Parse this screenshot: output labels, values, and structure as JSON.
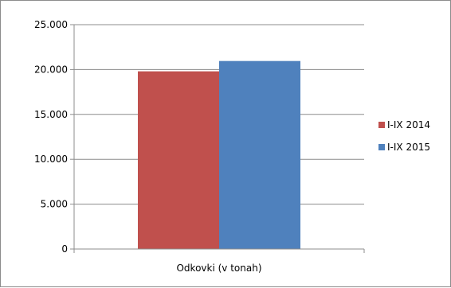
{
  "chart_data": {
    "type": "bar",
    "categories": [
      "Odkovki (v tonah)"
    ],
    "series": [
      {
        "name": "I-IX 2014",
        "values": [
          19800
        ],
        "color": "#c0504d"
      },
      {
        "name": "I-IX 2015",
        "values": [
          20950
        ],
        "color": "#4f81bd"
      }
    ],
    "ylim": [
      0,
      25000
    ],
    "yticks": [
      0,
      5000,
      10000,
      15000,
      20000,
      25000
    ],
    "ytick_labels": [
      "0",
      "5.000",
      "10.000",
      "15.000",
      "20.000",
      "25.000"
    ],
    "grid": true,
    "legend_position": "right",
    "grid_color": "#8c8c8c"
  }
}
